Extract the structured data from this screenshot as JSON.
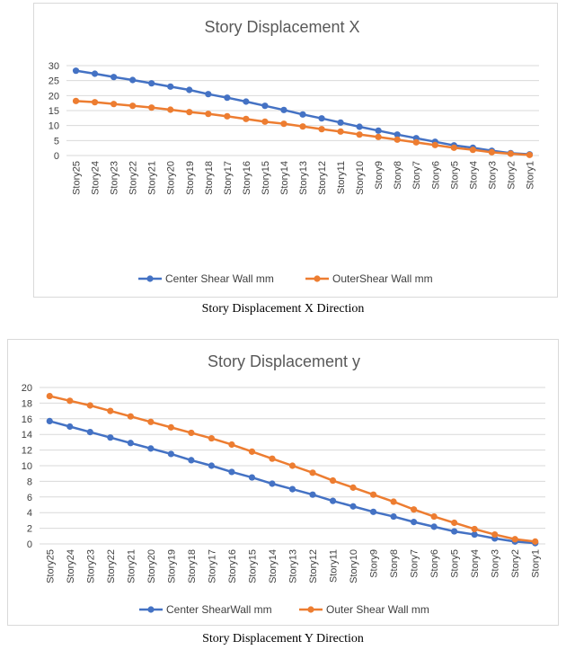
{
  "figures": [
    {
      "caption": "Story Displacement X Direction",
      "chart_data": {
        "type": "line",
        "title": "Story Displacement X",
        "xlabel": "",
        "ylabel": "",
        "categories": [
          "Story25",
          "Story24",
          "Story23",
          "Story22",
          "Story21",
          "Story20",
          "Story19",
          "Story18",
          "Story17",
          "Story16",
          "Story15",
          "Story14",
          "Story13",
          "Story12",
          "Story11",
          "Story10",
          "Story9",
          "Story8",
          "Story7",
          "Story6",
          "Story5",
          "Story4",
          "Story3",
          "Story2",
          "Story1"
        ],
        "yticks": [
          "0",
          "5",
          "10",
          "15",
          "20",
          "25",
          "30"
        ],
        "ylim": [
          0,
          30
        ],
        "grid": true,
        "legend_position": "bottom",
        "series": [
          {
            "name": "Center Shear Wall mm",
            "color": "#4472C4",
            "values": [
              28.3,
              27.3,
              26.2,
              25.2,
              24.1,
              23.0,
              21.9,
              20.5,
              19.3,
              18.0,
              16.6,
              15.2,
              13.7,
              12.4,
              11.0,
              9.6,
              8.3,
              7.0,
              5.8,
              4.6,
              3.4,
              2.6,
              1.6,
              0.8,
              0.4
            ]
          },
          {
            "name": "OuterShear Wall mm",
            "color": "#ED7D31",
            "values": [
              18.2,
              17.8,
              17.2,
              16.6,
              16.0,
              15.3,
              14.5,
              13.9,
              13.1,
              12.2,
              11.3,
              10.6,
              9.7,
              8.8,
              8.0,
              7.0,
              6.2,
              5.3,
              4.4,
              3.5,
              2.6,
              1.9,
              1.1,
              0.6,
              0.2
            ]
          }
        ]
      }
    },
    {
      "caption": "Story Displacement Y Direction",
      "chart_data": {
        "type": "line",
        "title": "Story Displacement y",
        "xlabel": "",
        "ylabel": "",
        "categories": [
          "Story25",
          "Story24",
          "Story23",
          "Story22",
          "Story21",
          "Story20",
          "Story19",
          "Story18",
          "Story17",
          "Story16",
          "Story15",
          "Story14",
          "Story13",
          "Story12",
          "Story11",
          "Story10",
          "Story9",
          "Story8",
          "Story7",
          "Story6",
          "Story5",
          "Story4",
          "Story3",
          "Story2",
          "Story1"
        ],
        "yticks": [
          "0",
          "2",
          "4",
          "6",
          "8",
          "10",
          "12",
          "14",
          "16",
          "18",
          "20"
        ],
        "ylim": [
          0,
          20
        ],
        "grid": true,
        "legend_position": "bottom",
        "series": [
          {
            "name": "Center ShearWall mm",
            "color": "#4472C4",
            "values": [
              15.7,
              15.0,
              14.3,
              13.6,
              12.9,
              12.2,
              11.5,
              10.7,
              10.0,
              9.2,
              8.5,
              7.7,
              7.0,
              6.3,
              5.5,
              4.8,
              4.1,
              3.5,
              2.8,
              2.2,
              1.6,
              1.2,
              0.7,
              0.3,
              0.1
            ]
          },
          {
            "name": "Outer Shear Wall mm",
            "color": "#ED7D31",
            "values": [
              18.9,
              18.3,
              17.7,
              17.0,
              16.3,
              15.6,
              14.9,
              14.2,
              13.5,
              12.7,
              11.8,
              10.9,
              10.0,
              9.1,
              8.1,
              7.2,
              6.3,
              5.4,
              4.4,
              3.5,
              2.7,
              1.9,
              1.2,
              0.6,
              0.3
            ]
          }
        ]
      }
    }
  ]
}
